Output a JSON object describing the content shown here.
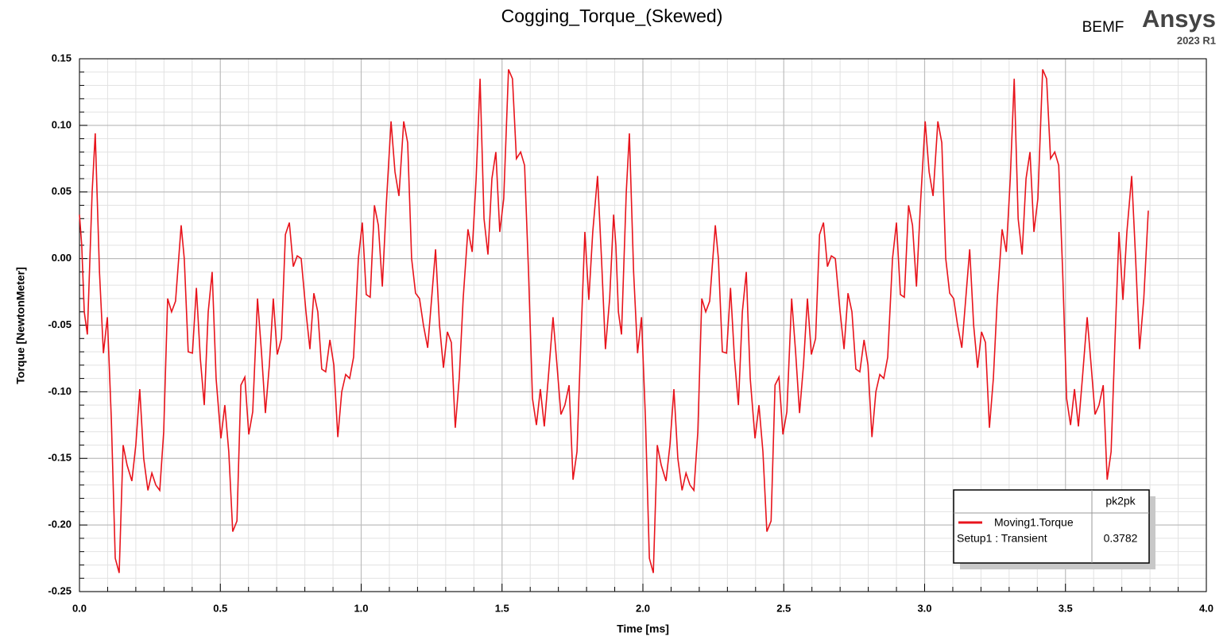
{
  "chart_data": {
    "type": "line",
    "title": "Cogging_Torque_(Skewed)",
    "brand": {
      "context": "BEMF",
      "name": "Ansys",
      "version": "2023 R1"
    },
    "xlabel": "Time [ms]",
    "ylabel": "Torque [NewtonMeter]",
    "xlim": [
      0,
      4
    ],
    "ylim": [
      -0.25,
      0.15
    ],
    "xticks": [
      {
        "value": 0,
        "label": "0.0"
      },
      0.5,
      {
        "value": 1,
        "label": "1.0"
      },
      1.5,
      {
        "value": 2,
        "label": "2.0"
      },
      2.5,
      {
        "value": 3,
        "label": "3.0"
      },
      3.5,
      {
        "value": 4,
        "label": "4.0"
      }
    ],
    "yticks": [
      {
        "value": -0.25,
        "label": "-0.25"
      },
      {
        "value": -0.2,
        "label": "-0.20"
      },
      -0.15,
      {
        "value": -0.1,
        "label": "-0.10"
      },
      -0.05,
      {
        "value": 0,
        "label": "0.00"
      },
      0.05,
      {
        "value": 0.1,
        "label": "0.10"
      },
      0.15
    ],
    "grid": true,
    "minor_grid": true,
    "legend_position": "lower right",
    "legend_header": "pk2pk",
    "x": [
      0,
      0.008,
      0.017,
      0.028,
      0.045,
      0.056,
      0.071,
      0.085,
      0.099,
      0.113,
      0.127,
      0.141,
      0.155,
      0.169,
      0.186,
      0.2,
      0.214,
      0.228,
      0.243,
      0.257,
      0.271,
      0.285,
      0.299,
      0.313,
      0.327,
      0.341,
      0.361,
      0.372,
      0.386,
      0.401,
      0.415,
      0.429,
      0.443,
      0.457,
      0.471,
      0.485,
      0.502,
      0.516,
      0.53,
      0.544,
      0.559,
      0.573,
      0.587,
      0.601,
      0.615,
      0.632,
      0.646,
      0.66,
      0.674,
      0.688,
      0.702,
      0.717,
      0.731,
      0.745,
      0.759,
      0.773,
      0.787,
      0.804,
      0.818,
      0.832,
      0.846,
      0.86,
      0.874,
      0.889,
      0.903,
      0.917,
      0.931,
      0.945,
      0.959,
      0.973,
      0.99,
      1.004,
      1.018,
      1.032,
      1.047,
      1.061,
      1.075,
      1.089,
      1.106,
      1.12,
      1.134,
      1.151,
      1.165,
      1.179,
      1.193,
      1.207,
      1.221,
      1.236,
      1.25,
      1.264,
      1.278,
      1.292,
      1.306,
      1.32,
      1.334,
      1.348,
      1.362,
      1.379,
      1.394,
      1.408,
      1.422,
      1.436,
      1.45,
      1.464,
      1.478,
      1.492,
      1.506,
      1.523,
      1.537,
      1.551,
      1.566,
      1.58,
      1.594,
      1.608,
      1.622,
      1.636,
      1.65,
      1.664,
      1.681,
      1.695,
      1.709,
      1.723,
      1.738,
      1.752,
      1.766,
      1.78,
      1.794,
      1.808,
      1.822,
      1.839,
      1.853,
      1.867,
      1.882,
      1.896,
      1.904,
      1.913,
      1.924,
      1.941,
      1.952,
      1.967,
      1.981,
      1.995,
      2.009,
      2.023,
      2.037,
      2.051,
      2.065,
      2.082,
      2.096,
      2.11,
      2.124,
      2.139,
      2.153,
      2.167,
      2.181,
      2.195,
      2.209,
      2.223,
      2.237,
      2.257,
      2.268,
      2.282,
      2.297,
      2.311,
      2.325,
      2.339,
      2.353,
      2.367,
      2.381,
      2.398,
      2.412,
      2.426,
      2.44,
      2.455,
      2.469,
      2.483,
      2.497,
      2.511,
      2.528,
      2.542,
      2.556,
      2.57,
      2.584,
      2.598,
      2.613,
      2.627,
      2.641,
      2.655,
      2.669,
      2.683,
      2.7,
      2.714,
      2.728,
      2.742,
      2.756,
      2.77,
      2.785,
      2.799,
      2.813,
      2.827,
      2.841,
      2.855,
      2.869,
      2.886,
      2.9,
      2.914,
      2.928,
      2.943,
      2.957,
      2.971,
      2.985,
      3.002,
      3.016,
      3.03,
      3.047,
      3.061,
      3.075,
      3.089,
      3.103,
      3.117,
      3.132,
      3.146,
      3.16,
      3.174,
      3.188,
      3.202,
      3.216,
      3.23,
      3.244,
      3.258,
      3.275,
      3.29,
      3.304,
      3.318,
      3.332,
      3.346,
      3.36,
      3.374,
      3.388,
      3.402,
      3.419,
      3.433,
      3.447,
      3.462,
      3.476,
      3.49,
      3.504,
      3.518,
      3.532,
      3.546,
      3.56,
      3.577,
      3.591,
      3.605,
      3.619,
      3.634,
      3.648,
      3.662,
      3.676,
      3.69,
      3.704,
      3.718,
      3.735,
      3.749,
      3.763,
      3.778,
      3.794
    ],
    "series": [
      {
        "name": "Moving1.Torque",
        "setup": "Setup1 : Transient",
        "pk2pk": "0.3782",
        "color": "#e8141c",
        "values": [
          0.033,
          0.01,
          -0.04,
          -0.057,
          0.05,
          0.094,
          -0.01,
          -0.071,
          -0.044,
          -0.12,
          -0.225,
          -0.236,
          -0.14,
          -0.155,
          -0.167,
          -0.14,
          -0.098,
          -0.15,
          -0.174,
          -0.161,
          -0.17,
          -0.174,
          -0.13,
          -0.03,
          -0.04,
          -0.032,
          0.025,
          0.0,
          -0.07,
          -0.071,
          -0.022,
          -0.075,
          -0.11,
          -0.04,
          -0.01,
          -0.09,
          -0.135,
          -0.11,
          -0.145,
          -0.205,
          -0.197,
          -0.095,
          -0.089,
          -0.132,
          -0.115,
          -0.03,
          -0.07,
          -0.116,
          -0.08,
          -0.03,
          -0.072,
          -0.06,
          0.018,
          0.027,
          -0.006,
          0.002,
          0.0,
          -0.04,
          -0.068,
          -0.026,
          -0.04,
          -0.083,
          -0.085,
          -0.061,
          -0.08,
          -0.134,
          -0.1,
          -0.087,
          -0.09,
          -0.074,
          0.0,
          0.027,
          -0.027,
          -0.029,
          0.04,
          0.025,
          -0.021,
          0.04,
          0.103,
          0.065,
          0.047,
          0.103,
          0.087,
          0.0,
          -0.026,
          -0.03,
          -0.05,
          -0.067,
          -0.03,
          0.007,
          -0.05,
          -0.082,
          -0.055,
          -0.063,
          -0.127,
          -0.09,
          -0.03,
          0.022,
          0.005,
          0.06,
          0.135,
          0.03,
          0.003,
          0.06,
          0.08,
          0.02,
          0.045,
          0.142,
          0.135,
          0.075,
          0.08,
          0.07,
          -0.01,
          -0.105,
          -0.125,
          -0.098,
          -0.126,
          -0.09,
          -0.044,
          -0.08,
          -0.117,
          -0.11,
          -0.095,
          -0.166,
          -0.145,
          -0.06,
          0.02,
          -0.031,
          0.02,
          0.062,
          0.0,
          -0.068,
          -0.03,
          0.033,
          0.01,
          -0.04,
          -0.057,
          0.05,
          0.094,
          -0.01,
          -0.071,
          -0.044,
          -0.12,
          -0.225,
          -0.236,
          -0.14,
          -0.155,
          -0.167,
          -0.14,
          -0.098,
          -0.15,
          -0.174,
          -0.161,
          -0.17,
          -0.174,
          -0.13,
          -0.03,
          -0.04,
          -0.032,
          0.025,
          0.0,
          -0.07,
          -0.071,
          -0.022,
          -0.075,
          -0.11,
          -0.04,
          -0.01,
          -0.09,
          -0.135,
          -0.11,
          -0.145,
          -0.205,
          -0.197,
          -0.095,
          -0.089,
          -0.132,
          -0.115,
          -0.03,
          -0.07,
          -0.116,
          -0.08,
          -0.03,
          -0.072,
          -0.06,
          0.018,
          0.027,
          -0.006,
          0.002,
          0.0,
          -0.04,
          -0.068,
          -0.026,
          -0.04,
          -0.083,
          -0.085,
          -0.061,
          -0.08,
          -0.134,
          -0.1,
          -0.087,
          -0.09,
          -0.074,
          0.0,
          0.027,
          -0.027,
          -0.029,
          0.04,
          0.025,
          -0.021,
          0.04,
          0.103,
          0.065,
          0.047,
          0.103,
          0.087,
          0.0,
          -0.026,
          -0.03,
          -0.05,
          -0.067,
          -0.03,
          0.007,
          -0.05,
          -0.082,
          -0.055,
          -0.063,
          -0.127,
          -0.09,
          -0.03,
          0.022,
          0.005,
          0.06,
          0.135,
          0.03,
          0.003,
          0.06,
          0.08,
          0.02,
          0.045,
          0.142,
          0.135,
          0.075,
          0.08,
          0.07,
          -0.01,
          -0.105,
          -0.125,
          -0.098,
          -0.126,
          -0.09,
          -0.044,
          -0.08,
          -0.117,
          -0.11,
          -0.095,
          -0.166,
          -0.145,
          -0.06,
          0.02,
          -0.031,
          0.02,
          0.062,
          0.0,
          -0.068,
          -0.03,
          0.036
        ]
      }
    ]
  }
}
